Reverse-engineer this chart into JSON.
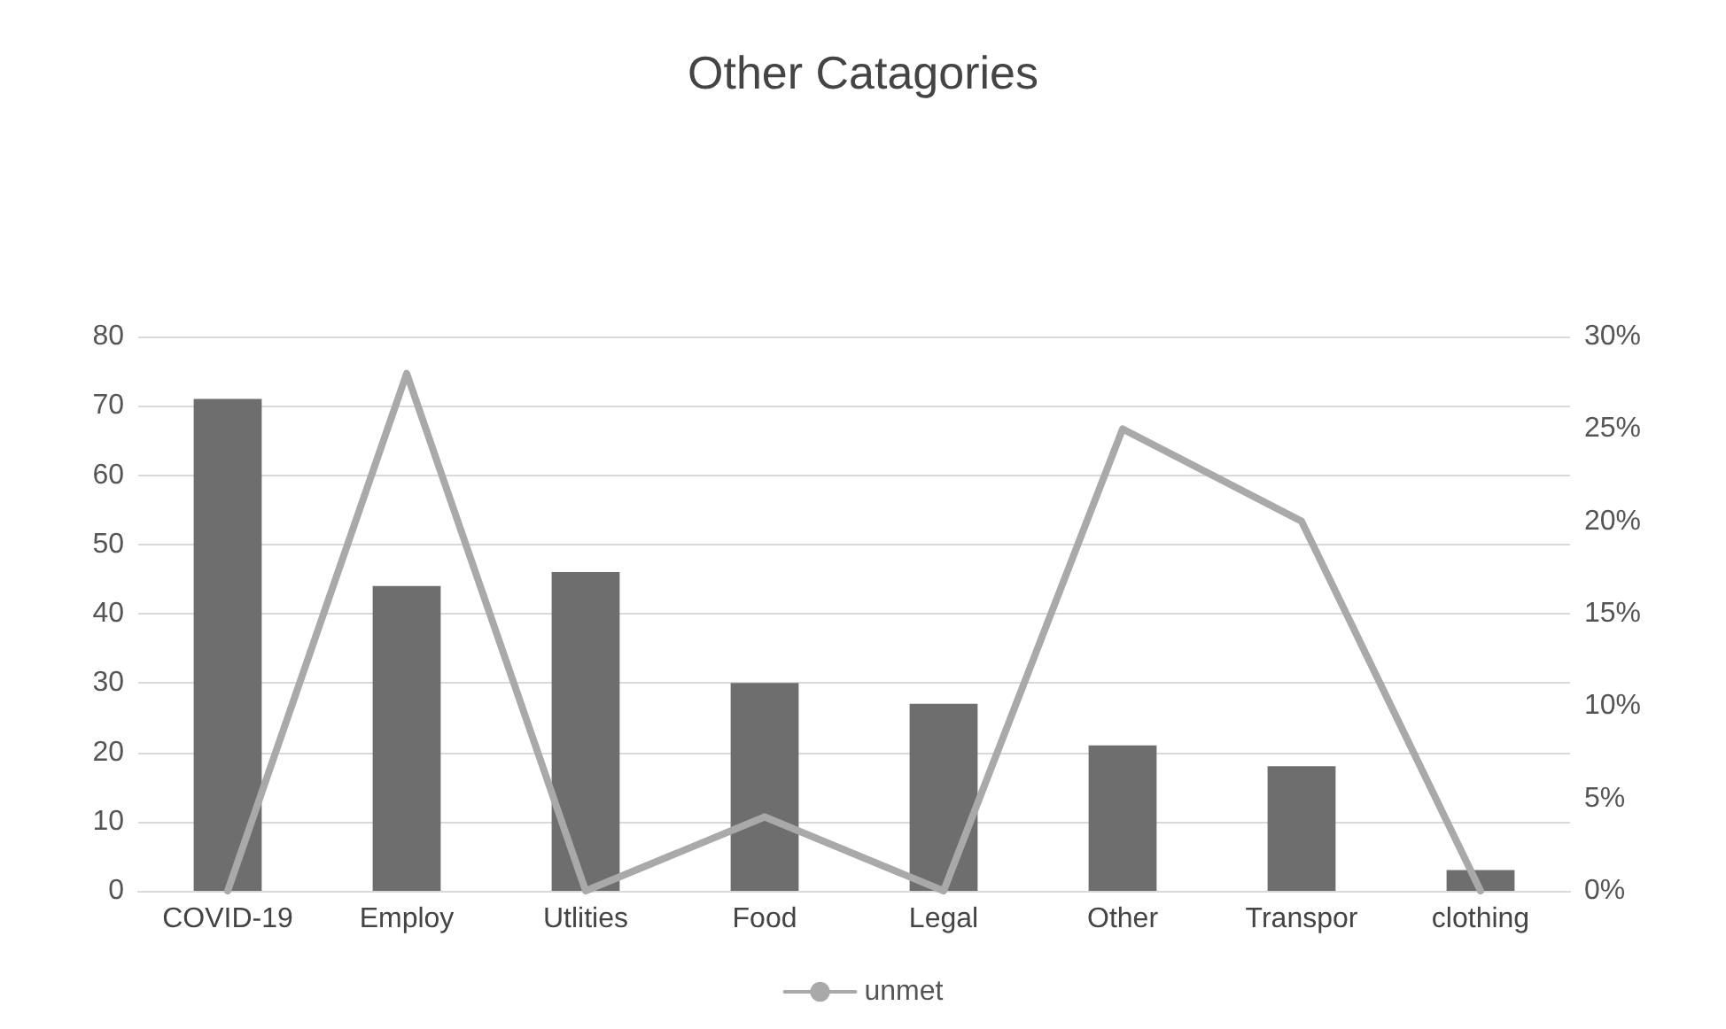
{
  "chart_data": {
    "type": "bar",
    "title": "Other Catagories",
    "categories": [
      "COVID-19",
      "Employ",
      "Utlities",
      "Food",
      "Legal",
      "Other",
      "Transpor",
      "clothing"
    ],
    "series": [
      {
        "color": "#6e6e6e",
        "values": [
          71,
          44,
          46,
          30,
          27,
          21,
          18,
          3
        ]
      },
      {
        "type": "line",
        "name": "unmet",
        "color": "#a9a9a9",
        "axis": "y2",
        "marker": "none",
        "line_style": "solid",
        "values": [
          0,
          28,
          0,
          4,
          0,
          25,
          20,
          0
        ]
      }
    ],
    "ylim": [
      0,
      80
    ],
    "yticks": [
      0,
      10,
      20,
      30,
      40,
      50,
      60,
      70,
      80
    ],
    "y2lim": [
      0,
      30
    ],
    "y2ticks": [
      {
        "value": 0,
        "label": "0%"
      },
      {
        "value": 5,
        "label": "5%"
      },
      {
        "value": 10,
        "label": "10%"
      },
      {
        "value": 15,
        "label": "15%"
      },
      {
        "value": 20,
        "label": "20%"
      },
      {
        "value": 25,
        "label": "25%"
      },
      {
        "value": 30,
        "label": "30%"
      }
    ],
    "grid": "y",
    "legend": "bottom"
  }
}
